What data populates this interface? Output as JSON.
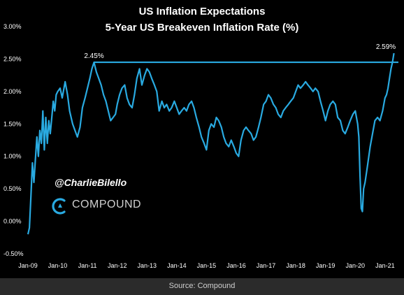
{
  "chart_data": {
    "type": "line",
    "title": "US Inflation Expectations",
    "subtitle": "5-Year US Breakeven Inflation Rate (%)",
    "xlabel": "",
    "ylabel": "",
    "ylim": [
      -0.5,
      3.0
    ],
    "xlim": [
      2009.0,
      2021.45
    ],
    "grid": false,
    "y_tick_labels": [
      "3.00%",
      "2.50%",
      "2.00%",
      "1.50%",
      "1.00%",
      "0.50%",
      "0.00%",
      "-0.50%"
    ],
    "y_tick_values": [
      3.0,
      2.5,
      2.0,
      1.5,
      1.0,
      0.5,
      0.0,
      -0.5
    ],
    "x_tick_labels": [
      "Jan-09",
      "Jan-10",
      "Jan-11",
      "Jan-12",
      "Jan-13",
      "Jan-14",
      "Jan-15",
      "Jan-16",
      "Jan-17",
      "Jan-18",
      "Jan-19",
      "Jan-20",
      "Jan-21"
    ],
    "x_tick_values": [
      2009,
      2010,
      2011,
      2012,
      2013,
      2014,
      2015,
      2016,
      2017,
      2018,
      2019,
      2020,
      2021
    ],
    "series": [
      {
        "name": "",
        "color": "#29aae1",
        "points": [
          [
            2009.0,
            -0.2
          ],
          [
            2009.05,
            -0.1
          ],
          [
            2009.1,
            0.4
          ],
          [
            2009.15,
            0.9
          ],
          [
            2009.2,
            0.6
          ],
          [
            2009.25,
            0.95
          ],
          [
            2009.3,
            1.3
          ],
          [
            2009.35,
            1.0
          ],
          [
            2009.4,
            1.4
          ],
          [
            2009.45,
            1.2
          ],
          [
            2009.5,
            1.7
          ],
          [
            2009.55,
            1.1
          ],
          [
            2009.6,
            1.6
          ],
          [
            2009.65,
            1.2
          ],
          [
            2009.7,
            1.55
          ],
          [
            2009.75,
            1.35
          ],
          [
            2009.8,
            1.6
          ],
          [
            2009.85,
            1.85
          ],
          [
            2009.9,
            1.7
          ],
          [
            2009.95,
            1.95
          ],
          [
            2010.0,
            2.0
          ],
          [
            2010.08,
            2.05
          ],
          [
            2010.15,
            1.9
          ],
          [
            2010.25,
            2.15
          ],
          [
            2010.33,
            1.95
          ],
          [
            2010.4,
            1.7
          ],
          [
            2010.5,
            1.5
          ],
          [
            2010.58,
            1.4
          ],
          [
            2010.66,
            1.3
          ],
          [
            2010.75,
            1.45
          ],
          [
            2010.83,
            1.75
          ],
          [
            2010.92,
            1.9
          ],
          [
            2011.0,
            2.05
          ],
          [
            2011.08,
            2.2
          ],
          [
            2011.15,
            2.35
          ],
          [
            2011.22,
            2.45
          ],
          [
            2011.3,
            2.3
          ],
          [
            2011.38,
            2.2
          ],
          [
            2011.46,
            2.1
          ],
          [
            2011.54,
            1.95
          ],
          [
            2011.62,
            1.85
          ],
          [
            2011.7,
            1.7
          ],
          [
            2011.78,
            1.55
          ],
          [
            2011.86,
            1.6
          ],
          [
            2011.94,
            1.65
          ],
          [
            2012.0,
            1.8
          ],
          [
            2012.08,
            1.95
          ],
          [
            2012.16,
            2.05
          ],
          [
            2012.25,
            2.1
          ],
          [
            2012.33,
            1.9
          ],
          [
            2012.41,
            1.8
          ],
          [
            2012.5,
            1.75
          ],
          [
            2012.58,
            1.95
          ],
          [
            2012.66,
            2.2
          ],
          [
            2012.75,
            2.35
          ],
          [
            2012.83,
            2.1
          ],
          [
            2012.92,
            2.25
          ],
          [
            2013.0,
            2.35
          ],
          [
            2013.08,
            2.3
          ],
          [
            2013.16,
            2.2
          ],
          [
            2013.25,
            2.1
          ],
          [
            2013.33,
            2.0
          ],
          [
            2013.41,
            1.7
          ],
          [
            2013.5,
            1.85
          ],
          [
            2013.58,
            1.75
          ],
          [
            2013.66,
            1.8
          ],
          [
            2013.75,
            1.7
          ],
          [
            2013.83,
            1.75
          ],
          [
            2013.92,
            1.85
          ],
          [
            2014.0,
            1.75
          ],
          [
            2014.08,
            1.65
          ],
          [
            2014.16,
            1.7
          ],
          [
            2014.25,
            1.75
          ],
          [
            2014.33,
            1.7
          ],
          [
            2014.41,
            1.8
          ],
          [
            2014.5,
            1.85
          ],
          [
            2014.58,
            1.75
          ],
          [
            2014.66,
            1.6
          ],
          [
            2014.75,
            1.45
          ],
          [
            2014.83,
            1.3
          ],
          [
            2014.92,
            1.2
          ],
          [
            2015.0,
            1.1
          ],
          [
            2015.08,
            1.4
          ],
          [
            2015.16,
            1.5
          ],
          [
            2015.25,
            1.45
          ],
          [
            2015.33,
            1.6
          ],
          [
            2015.41,
            1.55
          ],
          [
            2015.5,
            1.45
          ],
          [
            2015.58,
            1.3
          ],
          [
            2015.66,
            1.2
          ],
          [
            2015.75,
            1.15
          ],
          [
            2015.83,
            1.25
          ],
          [
            2015.92,
            1.15
          ],
          [
            2016.0,
            1.05
          ],
          [
            2016.08,
            1.0
          ],
          [
            2016.16,
            1.25
          ],
          [
            2016.25,
            1.4
          ],
          [
            2016.33,
            1.45
          ],
          [
            2016.41,
            1.4
          ],
          [
            2016.5,
            1.35
          ],
          [
            2016.58,
            1.25
          ],
          [
            2016.66,
            1.3
          ],
          [
            2016.75,
            1.45
          ],
          [
            2016.83,
            1.6
          ],
          [
            2016.92,
            1.8
          ],
          [
            2017.0,
            1.85
          ],
          [
            2017.08,
            1.95
          ],
          [
            2017.16,
            1.9
          ],
          [
            2017.25,
            1.8
          ],
          [
            2017.33,
            1.75
          ],
          [
            2017.41,
            1.65
          ],
          [
            2017.5,
            1.6
          ],
          [
            2017.58,
            1.7
          ],
          [
            2017.66,
            1.75
          ],
          [
            2017.75,
            1.8
          ],
          [
            2017.83,
            1.85
          ],
          [
            2017.92,
            1.9
          ],
          [
            2018.0,
            2.0
          ],
          [
            2018.08,
            2.1
          ],
          [
            2018.16,
            2.05
          ],
          [
            2018.25,
            2.1
          ],
          [
            2018.33,
            2.15
          ],
          [
            2018.41,
            2.1
          ],
          [
            2018.5,
            2.05
          ],
          [
            2018.58,
            2.0
          ],
          [
            2018.66,
            2.05
          ],
          [
            2018.75,
            2.0
          ],
          [
            2018.83,
            1.85
          ],
          [
            2018.92,
            1.7
          ],
          [
            2019.0,
            1.55
          ],
          [
            2019.08,
            1.7
          ],
          [
            2019.16,
            1.8
          ],
          [
            2019.25,
            1.85
          ],
          [
            2019.33,
            1.8
          ],
          [
            2019.41,
            1.6
          ],
          [
            2019.5,
            1.55
          ],
          [
            2019.58,
            1.4
          ],
          [
            2019.66,
            1.35
          ],
          [
            2019.75,
            1.45
          ],
          [
            2019.83,
            1.55
          ],
          [
            2019.92,
            1.65
          ],
          [
            2020.0,
            1.7
          ],
          [
            2020.04,
            1.6
          ],
          [
            2020.08,
            1.5
          ],
          [
            2020.12,
            1.3
          ],
          [
            2020.16,
            0.7
          ],
          [
            2020.2,
            0.2
          ],
          [
            2020.24,
            0.15
          ],
          [
            2020.28,
            0.5
          ],
          [
            2020.33,
            0.6
          ],
          [
            2020.41,
            0.85
          ],
          [
            2020.5,
            1.15
          ],
          [
            2020.58,
            1.35
          ],
          [
            2020.66,
            1.55
          ],
          [
            2020.75,
            1.6
          ],
          [
            2020.83,
            1.55
          ],
          [
            2020.92,
            1.7
          ],
          [
            2021.0,
            1.9
          ],
          [
            2021.05,
            1.95
          ],
          [
            2021.1,
            2.05
          ],
          [
            2021.15,
            2.2
          ],
          [
            2021.2,
            2.35
          ],
          [
            2021.25,
            2.45
          ],
          [
            2021.3,
            2.59
          ]
        ]
      }
    ],
    "reference_line": {
      "value": 2.45,
      "color": "#29aae1"
    },
    "annotations": [
      {
        "text": "2.45%",
        "x": 2011.22,
        "y": 2.45
      },
      {
        "text": "2.59%",
        "x": 2021.3,
        "y": 2.59
      }
    ]
  },
  "overlay": {
    "handle": "@CharlieBilello",
    "brand": "COMPOUND"
  },
  "footer": {
    "source": "Source: Compound"
  }
}
